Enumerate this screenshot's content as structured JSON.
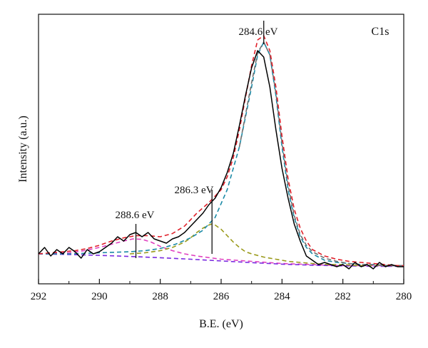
{
  "chart_data": {
    "type": "line",
    "panel_label": "C1s",
    "xlabel": "B.E. (eV)",
    "ylabel": "Intensity (a.u.)",
    "xlim": [
      292,
      280
    ],
    "x_reversed": true,
    "ylim": [
      -0.14,
      1.12
    ],
    "y_ticks_shown": false,
    "x_ticks": [
      292,
      290,
      288,
      286,
      284,
      282,
      280
    ],
    "x_tick_labels": [
      "292",
      "290",
      "288",
      "286",
      "284",
      "282",
      "280"
    ],
    "grid": false,
    "legend": "none",
    "series": [
      {
        "color": "#000000",
        "style": "solid",
        "x": [
          292.0,
          291.8,
          291.6,
          291.4,
          291.2,
          291.0,
          290.8,
          290.6,
          290.4,
          290.2,
          290.0,
          289.8,
          289.6,
          289.4,
          289.2,
          289.0,
          288.8,
          288.6,
          288.4,
          288.2,
          288.0,
          287.8,
          287.6,
          287.4,
          287.2,
          287.0,
          286.8,
          286.6,
          286.4,
          286.2,
          286.0,
          285.8,
          285.6,
          285.4,
          285.2,
          285.0,
          284.8,
          284.6,
          284.4,
          284.2,
          284.0,
          283.8,
          283.6,
          283.4,
          283.2,
          283.0,
          282.8,
          282.6,
          282.4,
          282.2,
          282.0,
          281.8,
          281.6,
          281.4,
          281.2,
          281.0,
          280.8,
          280.6,
          280.4,
          280.2,
          280.0
        ],
        "y": [
          0.0,
          0.03,
          -0.01,
          0.02,
          0.0,
          0.03,
          0.01,
          -0.02,
          0.02,
          0.0,
          0.01,
          0.03,
          0.05,
          0.08,
          0.06,
          0.09,
          0.1,
          0.08,
          0.1,
          0.07,
          0.06,
          0.05,
          0.07,
          0.08,
          0.1,
          0.13,
          0.16,
          0.19,
          0.23,
          0.26,
          0.31,
          0.38,
          0.47,
          0.6,
          0.74,
          0.87,
          0.95,
          0.92,
          0.78,
          0.58,
          0.4,
          0.26,
          0.14,
          0.06,
          -0.01,
          -0.03,
          -0.05,
          -0.04,
          -0.05,
          -0.06,
          -0.05,
          -0.07,
          -0.04,
          -0.06,
          -0.05,
          -0.07,
          -0.04,
          -0.06,
          -0.05,
          -0.06,
          -0.06
        ]
      },
      {
        "color": "#e0202a",
        "style": "dashed",
        "x": [
          292.0,
          291.6,
          291.2,
          290.8,
          290.4,
          290.0,
          289.6,
          289.2,
          288.8,
          288.4,
          288.0,
          287.6,
          287.2,
          286.8,
          286.4,
          286.2,
          286.0,
          285.8,
          285.6,
          285.4,
          285.2,
          285.0,
          284.8,
          284.6,
          284.4,
          284.2,
          284.0,
          283.8,
          283.6,
          283.4,
          283.2,
          283.0,
          282.6,
          282.2,
          281.8,
          281.4,
          281.0,
          280.6,
          280.2,
          280.0
        ],
        "y": [
          0.0,
          0.005,
          0.01,
          0.015,
          0.025,
          0.04,
          0.06,
          0.075,
          0.085,
          0.085,
          0.08,
          0.095,
          0.13,
          0.19,
          0.24,
          0.27,
          0.3,
          0.36,
          0.45,
          0.58,
          0.73,
          0.88,
          1.0,
          1.02,
          0.95,
          0.78,
          0.55,
          0.35,
          0.21,
          0.12,
          0.06,
          0.02,
          -0.01,
          -0.025,
          -0.035,
          -0.04,
          -0.045,
          -0.05,
          -0.055,
          -0.055
        ]
      },
      {
        "color": "#1b8aa6",
        "style": "dashed",
        "x": [
          292.0,
          291.0,
          290.0,
          289.0,
          288.5,
          288.0,
          287.5,
          287.0,
          286.6,
          286.2,
          285.8,
          285.4,
          285.0,
          284.8,
          284.6,
          284.4,
          284.2,
          284.0,
          283.8,
          283.6,
          283.4,
          283.2,
          283.0,
          282.6,
          282.2,
          281.8,
          281.4,
          281.0,
          280.5,
          280.0
        ],
        "y": [
          0.0,
          0.0,
          0.005,
          0.01,
          0.015,
          0.025,
          0.045,
          0.075,
          0.11,
          0.17,
          0.3,
          0.5,
          0.78,
          0.93,
          0.99,
          0.93,
          0.74,
          0.5,
          0.3,
          0.17,
          0.08,
          0.03,
          0.0,
          -0.03,
          -0.04,
          -0.045,
          -0.05,
          -0.05,
          -0.055,
          -0.055
        ]
      },
      {
        "color": "#6e6e6e",
        "style": "dashed",
        "x": [
          285.4,
          285.0,
          284.8,
          284.6,
          284.4,
          284.2,
          284.0,
          283.8,
          283.6,
          283.4,
          283.2,
          283.0,
          282.6,
          282.2,
          281.8,
          281.4,
          281.0,
          280.5,
          280.0
        ],
        "y": [
          0.5,
          0.8,
          0.94,
          0.99,
          0.93,
          0.75,
          0.52,
          0.32,
          0.18,
          0.09,
          0.04,
          0.01,
          -0.02,
          -0.035,
          -0.045,
          -0.05,
          -0.05,
          -0.055,
          -0.055
        ]
      },
      {
        "color": "#9a9a1a",
        "style": "dashed",
        "x": [
          289.0,
          288.5,
          288.0,
          287.6,
          287.2,
          287.0,
          286.8,
          286.6,
          286.4,
          286.3,
          286.2,
          286.0,
          285.8,
          285.6,
          285.4,
          285.2,
          285.0,
          284.6,
          284.2,
          283.8,
          283.4,
          283.0,
          282.5,
          282.0,
          281.5,
          281.0,
          280.5,
          280.0
        ],
        "y": [
          0.0,
          0.005,
          0.015,
          0.03,
          0.055,
          0.075,
          0.1,
          0.12,
          0.135,
          0.14,
          0.135,
          0.115,
          0.085,
          0.055,
          0.03,
          0.01,
          0.0,
          -0.015,
          -0.025,
          -0.035,
          -0.04,
          -0.045,
          -0.05,
          -0.05,
          -0.055,
          -0.055,
          -0.055,
          -0.055
        ]
      },
      {
        "color": "#e040c0",
        "style": "dashed",
        "x": [
          292.0,
          291.0,
          290.5,
          290.0,
          289.6,
          289.2,
          288.9,
          288.6,
          288.3,
          288.0,
          287.6,
          287.2,
          286.8,
          286.0,
          285.0,
          284.0,
          283.0,
          282.0,
          281.0,
          280.0
        ],
        "y": [
          0.0,
          0.005,
          0.015,
          0.03,
          0.045,
          0.06,
          0.07,
          0.068,
          0.055,
          0.035,
          0.015,
          0.0,
          -0.01,
          -0.025,
          -0.035,
          -0.045,
          -0.05,
          -0.055,
          -0.055,
          -0.055
        ]
      },
      {
        "color": "#7a2ae0",
        "style": "dashed",
        "x": [
          292.0,
          291.0,
          290.0,
          289.0,
          288.0,
          287.0,
          286.0,
          285.0,
          284.0,
          283.0,
          282.0,
          281.0,
          280.0
        ],
        "y": [
          0.0,
          -0.003,
          -0.007,
          -0.012,
          -0.018,
          -0.025,
          -0.033,
          -0.041,
          -0.048,
          -0.053,
          -0.056,
          -0.058,
          -0.058
        ]
      }
    ],
    "annotations": [
      {
        "text": "284.6 eV",
        "x": 284.6
      },
      {
        "text": "286.3 eV",
        "x": 286.3
      },
      {
        "text": "288.6 eV",
        "x": 288.8
      }
    ]
  }
}
